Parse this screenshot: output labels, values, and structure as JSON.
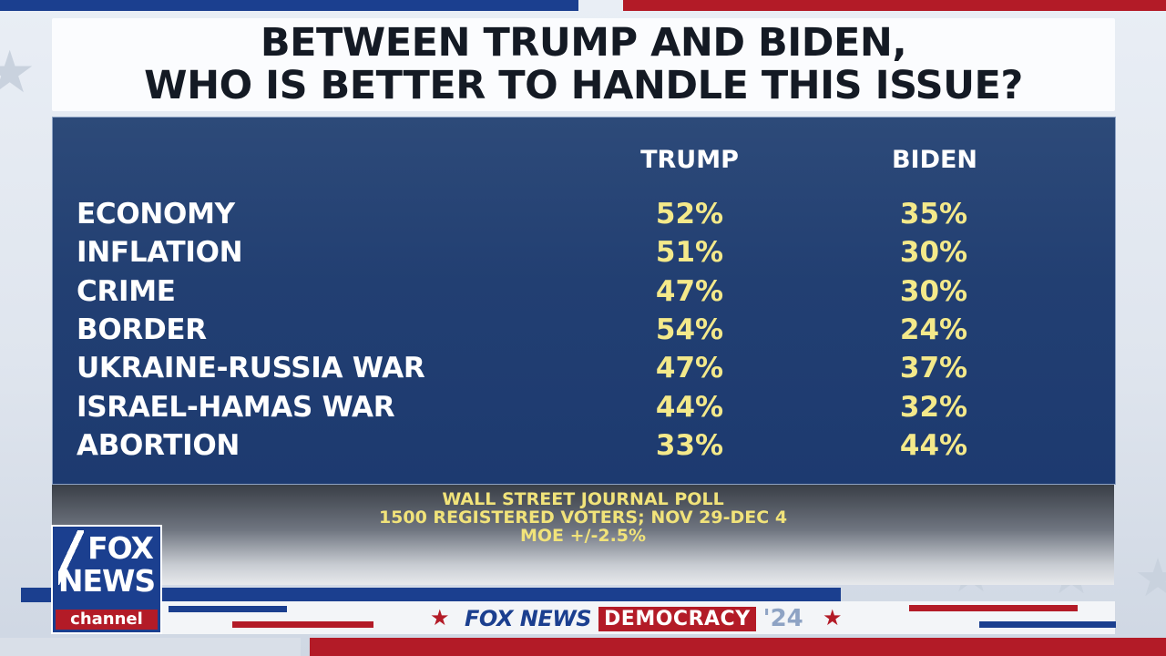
{
  "title": {
    "line1": "BETWEEN TRUMP AND BIDEN,",
    "line2": "WHO IS BETTER TO HANDLE THIS ISSUE?"
  },
  "chart_data": {
    "type": "table",
    "title": "BETWEEN TRUMP AND BIDEN, WHO IS BETTER TO HANDLE THIS ISSUE?",
    "columns": [
      "TRUMP",
      "BIDEN"
    ],
    "rows": [
      {
        "issue": "ECONOMY",
        "trump": "52%",
        "biden": "35%"
      },
      {
        "issue": "INFLATION",
        "trump": "51%",
        "biden": "30%"
      },
      {
        "issue": "CRIME",
        "trump": "47%",
        "biden": "30%"
      },
      {
        "issue": "BORDER",
        "trump": "54%",
        "biden": "24%"
      },
      {
        "issue": "UKRAINE-RUSSIA WAR",
        "trump": "47%",
        "biden": "37%"
      },
      {
        "issue": "ISRAEL-HAMAS WAR",
        "trump": "44%",
        "biden": "32%"
      },
      {
        "issue": "ABORTION",
        "trump": "33%",
        "biden": "44%"
      }
    ]
  },
  "source": {
    "line1": "WALL STREET JOURNAL POLL",
    "line2": "1500 REGISTERED VOTERS; NOV 29-DEC 4",
    "line3": "MOE +/-2.5%"
  },
  "logo": {
    "fox": "FOX",
    "news": "NEWS",
    "channel": "channel"
  },
  "ticker": {
    "fox_news": "FOX NEWS",
    "democracy": "DEMOCRACY",
    "year": "'24"
  },
  "colors": {
    "panel": "#223f72",
    "value_text": "#f4e98a",
    "brand_red": "#b31b27",
    "brand_blue": "#1b3f8f"
  }
}
